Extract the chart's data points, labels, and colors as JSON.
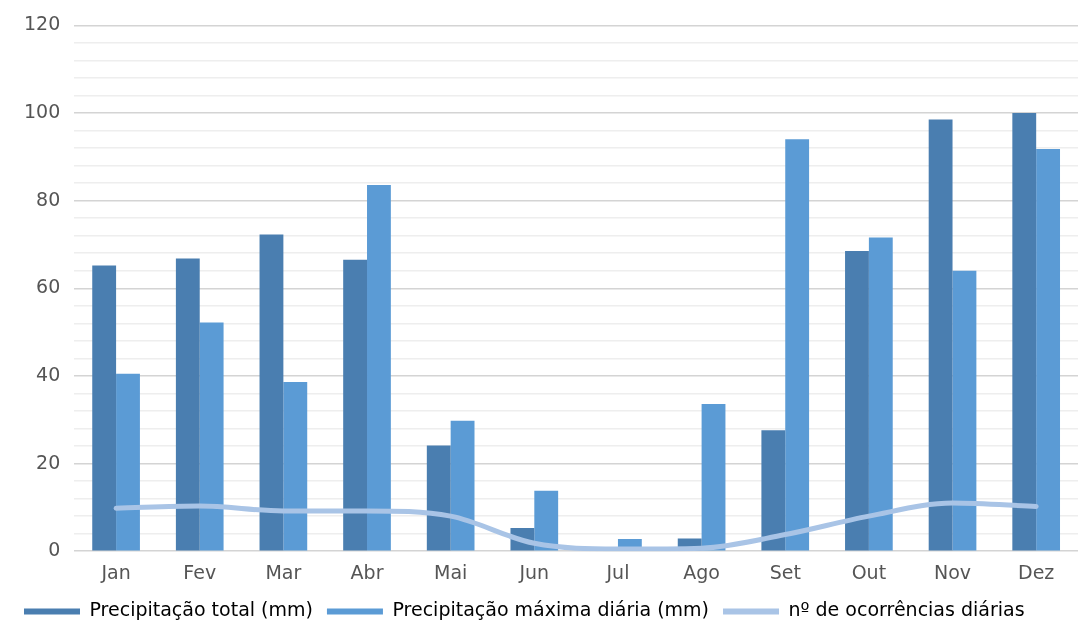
{
  "chart_data": {
    "type": "bar",
    "categories": [
      "Jan",
      "Fev",
      "Mar",
      "Abr",
      "Mai",
      "Jun",
      "Jul",
      "Ago",
      "Set",
      "Out",
      "Nov",
      "Dez"
    ],
    "series": [
      {
        "name": "Precipitação total (mm)",
        "color": "#4a7eb0",
        "values": [
          65.2,
          66.8,
          72.3,
          66.5,
          24.1,
          5.3,
          0,
          2.9,
          27.6,
          68.5,
          98.5,
          100
        ]
      },
      {
        "name": "Precipitação máxima diária (mm)",
        "color": "#5b9bd5",
        "values": [
          40.5,
          52.2,
          38.6,
          83.6,
          29.8,
          13.8,
          2.8,
          33.6,
          94,
          71.6,
          64,
          91.8
        ]
      },
      {
        "name": "nº de ocorrências diárias",
        "type": "line",
        "color": "#a9c4e6",
        "values": [
          9.8,
          10.3,
          9.2,
          9.2,
          8,
          1.8,
          0.5,
          0.7,
          3.8,
          8,
          11,
          10.2
        ]
      }
    ],
    "ylim": [
      0,
      120
    ],
    "yticks": [
      0,
      {
        "value": 4,
        "label": null
      },
      {
        "value": 8,
        "label": null
      },
      {
        "value": 12,
        "label": null
      },
      {
        "value": 16,
        "label": null
      },
      20,
      {
        "value": 24,
        "label": null
      },
      {
        "value": 28,
        "label": null
      },
      {
        "value": 32,
        "label": null
      },
      {
        "value": 36,
        "label": null
      },
      40,
      {
        "value": 44,
        "label": null
      },
      {
        "value": 48,
        "label": null
      },
      {
        "value": 52,
        "label": null
      },
      {
        "value": 56,
        "label": null
      },
      60,
      {
        "value": 64,
        "label": null
      },
      {
        "value": 68,
        "label": null
      },
      {
        "value": 72,
        "label": null
      },
      {
        "value": 76,
        "label": null
      },
      80,
      {
        "value": 84,
        "label": null
      },
      {
        "value": 88,
        "label": null
      },
      {
        "value": 92,
        "label": null
      },
      {
        "value": 96,
        "label": null
      },
      100,
      {
        "value": 104,
        "label": null
      },
      {
        "value": 108,
        "label": null
      },
      {
        "value": 112,
        "label": null
      },
      {
        "value": 116,
        "label": null
      },
      120
    ],
    "grid": "y",
    "legend": "bottom",
    "marker": "none"
  }
}
